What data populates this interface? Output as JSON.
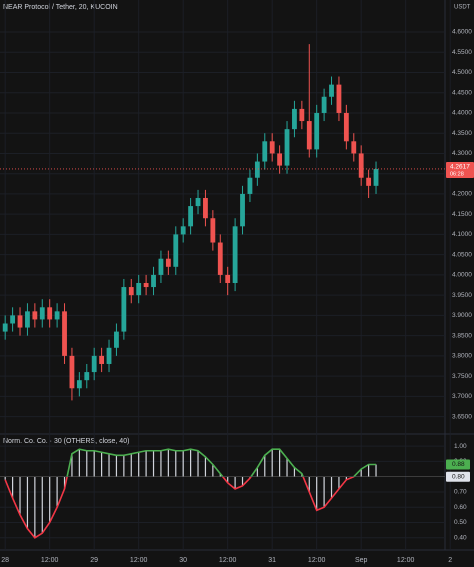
{
  "chart_data": [
    {
      "type": "candlestick",
      "title": "NEAR Protocol / Tether, 20, KUCOIN",
      "currency": "USDT",
      "x": [
        0,
        2,
        4,
        6,
        8,
        10,
        12,
        14,
        16,
        18,
        20,
        22,
        24,
        26,
        28,
        30,
        32,
        34,
        36,
        38,
        40,
        42,
        44,
        46,
        48,
        50,
        52,
        54,
        56,
        58,
        60,
        62,
        64,
        66,
        68,
        70,
        72,
        74,
        76,
        78,
        80,
        82,
        84,
        86,
        88,
        90,
        92,
        94,
        96,
        98,
        100
      ],
      "open": [
        3.86,
        3.88,
        3.9,
        3.87,
        3.91,
        3.89,
        3.92,
        3.89,
        3.91,
        3.8,
        3.72,
        3.74,
        3.76,
        3.8,
        3.78,
        3.82,
        3.86,
        3.97,
        3.95,
        3.98,
        3.97,
        4.0,
        4.04,
        4.02,
        4.1,
        4.12,
        4.17,
        4.19,
        4.14,
        4.08,
        4.0,
        3.98,
        4.12,
        4.2,
        4.24,
        4.28,
        4.33,
        4.3,
        4.27,
        4.36,
        4.41,
        4.38,
        4.31,
        4.4,
        4.44,
        4.47,
        4.4,
        4.33,
        4.3,
        4.24,
        4.22
      ],
      "high": [
        3.9,
        3.92,
        3.92,
        3.93,
        3.93,
        3.94,
        3.94,
        3.93,
        3.93,
        3.82,
        3.76,
        3.78,
        3.82,
        3.82,
        3.84,
        3.88,
        3.99,
        3.99,
        4.0,
        4.0,
        4.02,
        4.06,
        4.06,
        4.12,
        4.14,
        4.19,
        4.21,
        4.21,
        4.16,
        4.1,
        4.02,
        4.14,
        4.22,
        4.26,
        4.3,
        4.35,
        4.35,
        4.32,
        4.38,
        4.43,
        4.43,
        4.57,
        4.42,
        4.46,
        4.49,
        4.49,
        4.42,
        4.35,
        4.32,
        4.26,
        4.28
      ],
      "low": [
        3.84,
        3.86,
        3.85,
        3.85,
        3.87,
        3.87,
        3.87,
        3.87,
        3.78,
        3.69,
        3.7,
        3.72,
        3.74,
        3.76,
        3.76,
        3.8,
        3.84,
        3.93,
        3.93,
        3.95,
        3.95,
        3.98,
        4.0,
        4.0,
        4.08,
        4.1,
        4.15,
        4.12,
        4.06,
        3.98,
        3.95,
        3.96,
        4.1,
        4.18,
        4.22,
        4.26,
        4.28,
        4.25,
        4.25,
        4.34,
        4.36,
        4.29,
        4.29,
        4.38,
        4.42,
        4.38,
        4.31,
        4.28,
        4.22,
        4.19,
        4.2
      ],
      "close": [
        3.88,
        3.9,
        3.87,
        3.91,
        3.89,
        3.92,
        3.89,
        3.91,
        3.8,
        3.72,
        3.74,
        3.76,
        3.8,
        3.78,
        3.82,
        3.86,
        3.97,
        3.95,
        3.98,
        3.97,
        4.0,
        4.04,
        4.02,
        4.1,
        4.12,
        4.17,
        4.19,
        4.14,
        4.08,
        4.0,
        3.98,
        4.12,
        4.2,
        4.24,
        4.28,
        4.33,
        4.3,
        4.27,
        4.36,
        4.41,
        4.38,
        4.31,
        4.4,
        4.44,
        4.47,
        4.4,
        4.33,
        4.3,
        4.24,
        4.22,
        4.2617
      ],
      "up_color": "#26a69a",
      "down_color": "#ef5350",
      "current_price": 4.2617,
      "countdown": "06:28",
      "xlim": [
        -1.4,
        118.6
      ],
      "xticks": [
        {
          "value": 0,
          "label": "28"
        },
        {
          "value": 12,
          "label": "12:00"
        },
        {
          "value": 24,
          "label": "29"
        },
        {
          "value": 36,
          "label": "12:00"
        },
        {
          "value": 48,
          "label": "30"
        },
        {
          "value": 60,
          "label": "12:00"
        },
        {
          "value": 72,
          "label": "31"
        },
        {
          "value": 84,
          "label": "12:00"
        },
        {
          "value": 96,
          "label": "Sep"
        },
        {
          "value": 108,
          "label": "12:00"
        },
        {
          "value": 120,
          "label": "2"
        }
      ],
      "ylim": [
        3.612,
        4.679
      ],
      "yticks": [
        {
          "value": 3.65,
          "label": "3.6500"
        },
        {
          "value": 3.7,
          "label": "3.7000"
        },
        {
          "value": 3.75,
          "label": "3.7500"
        },
        {
          "value": 3.8,
          "label": "3.8000"
        },
        {
          "value": 3.85,
          "label": "3.8500"
        },
        {
          "value": 3.9,
          "label": "3.9000"
        },
        {
          "value": 3.95,
          "label": "3.9500"
        },
        {
          "value": 4.0,
          "label": "4.0000"
        },
        {
          "value": 4.05,
          "label": "4.0500"
        },
        {
          "value": 4.1,
          "label": "4.1000"
        },
        {
          "value": 4.15,
          "label": "4.1500"
        },
        {
          "value": 4.2,
          "label": "4.2000"
        },
        {
          "value": 4.25,
          "label": "4.2500"
        },
        {
          "value": 4.3,
          "label": "4.3000"
        },
        {
          "value": 4.35,
          "label": "4.3500"
        },
        {
          "value": 4.4,
          "label": "4.4000"
        },
        {
          "value": 4.45,
          "label": "4.4500"
        },
        {
          "value": 4.5,
          "label": "4.5000"
        },
        {
          "value": 4.55,
          "label": "4.5500"
        },
        {
          "value": 4.6,
          "label": "4.6000"
        }
      ],
      "grid": true
    },
    {
      "type": "oscillator",
      "title": "Norm. Co. Co. · 30 (OTHERS, close, 40)",
      "x": [
        0,
        2,
        4,
        6,
        8,
        10,
        12,
        14,
        16,
        18,
        20,
        22,
        24,
        26,
        28,
        30,
        32,
        34,
        36,
        38,
        40,
        42,
        44,
        46,
        48,
        50,
        52,
        54,
        56,
        58,
        60,
        62,
        64,
        66,
        68,
        70,
        72,
        74,
        76,
        78,
        80,
        82,
        84,
        86,
        88,
        90,
        92,
        94,
        96,
        98,
        100
      ],
      "values": [
        0.78,
        0.66,
        0.55,
        0.46,
        0.4,
        0.43,
        0.5,
        0.6,
        0.72,
        0.95,
        0.98,
        0.97,
        0.97,
        0.96,
        0.95,
        0.94,
        0.94,
        0.95,
        0.96,
        0.97,
        0.97,
        0.97,
        0.98,
        0.97,
        0.97,
        0.98,
        0.97,
        0.93,
        0.88,
        0.82,
        0.76,
        0.72,
        0.74,
        0.79,
        0.86,
        0.94,
        0.98,
        0.98,
        0.92,
        0.86,
        0.82,
        0.7,
        0.58,
        0.6,
        0.66,
        0.72,
        0.78,
        0.8,
        0.85,
        0.88,
        0.88
      ],
      "baseline": {
        "value": 0.8,
        "label": "0.80"
      },
      "above_color": "#4caf50",
      "below_color": "#f23645",
      "bar_color": "#d1d4dc",
      "xlim": [
        -1.4,
        118.6
      ],
      "ylim": [
        0.32,
        1.06
      ],
      "yticks": [
        {
          "value": 0.4,
          "label": "0.40"
        },
        {
          "value": 0.5,
          "label": "0.50"
        },
        {
          "value": 0.6,
          "label": "0.60"
        },
        {
          "value": 0.7,
          "label": "0.70"
        },
        {
          "value": 0.9,
          "label": "0.90"
        },
        {
          "value": 1.0,
          "label": "1.00"
        }
      ],
      "grid": true
    }
  ]
}
